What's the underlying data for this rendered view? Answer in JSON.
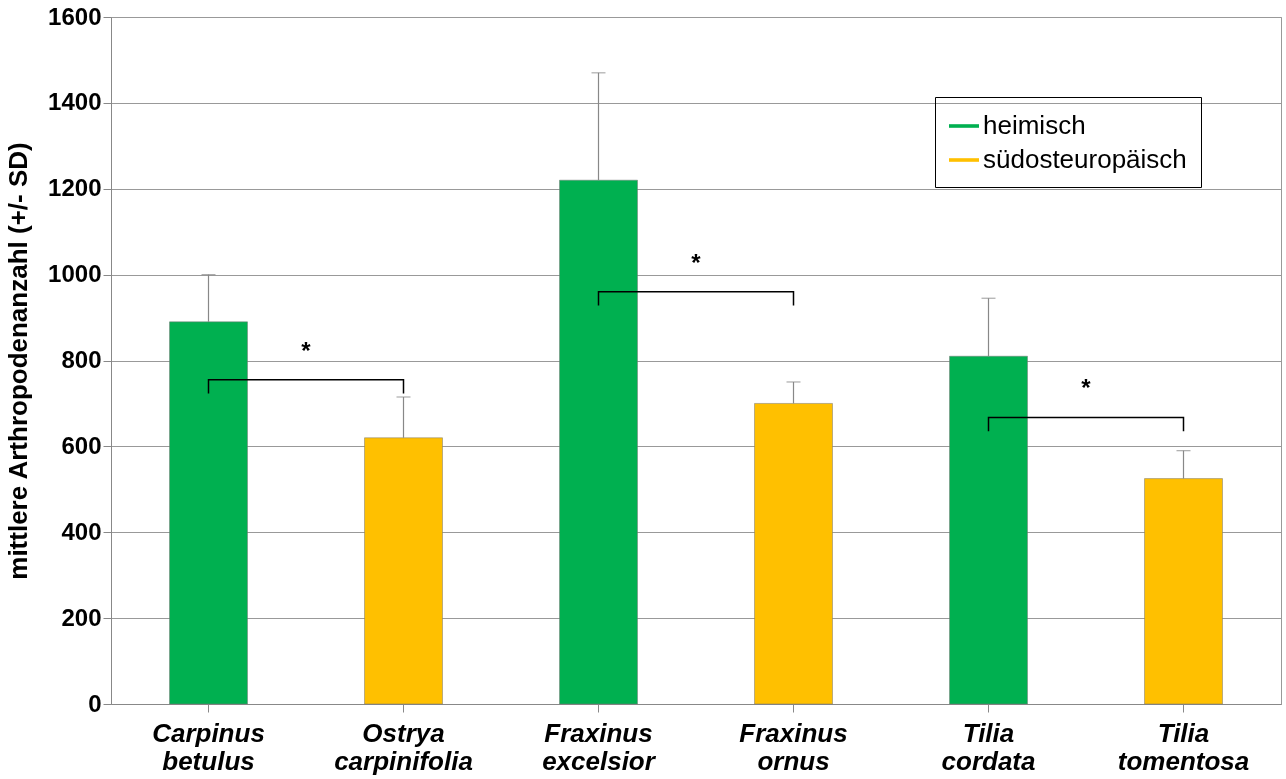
{
  "chart_data": {
    "type": "bar",
    "ylabel": "mittlere Arthropodenanzahl (+/- SD)",
    "categories": [
      "Carpinus betulus",
      "Ostrya carpinifolia",
      "Fraxinus excelsior",
      "Fraxinus ornus",
      "Tilia cordata",
      "Tilia tomentosa"
    ],
    "series": [
      {
        "name": "heimisch",
        "color": "#00b050",
        "values": [
          890,
          null,
          1220,
          null,
          810,
          null
        ],
        "errors": [
          [
            890,
            1000
          ],
          null,
          [
            1220,
            1470
          ],
          null,
          [
            810,
            945
          ],
          null
        ]
      },
      {
        "name": "südosteuropäisch",
        "color": "#ffc000",
        "values": [
          null,
          620,
          null,
          700,
          null,
          525
        ],
        "errors": [
          null,
          [
            620,
            715
          ],
          null,
          [
            700,
            750
          ],
          null,
          [
            525,
            590
          ]
        ]
      }
    ],
    "ylim": [
      0,
      1600
    ],
    "yticks": [
      0,
      200,
      400,
      600,
      800,
      1000,
      1200,
      1400,
      1600
    ],
    "annotations": [
      "*",
      "*",
      "*"
    ],
    "grid": "y",
    "legend": "top right"
  }
}
